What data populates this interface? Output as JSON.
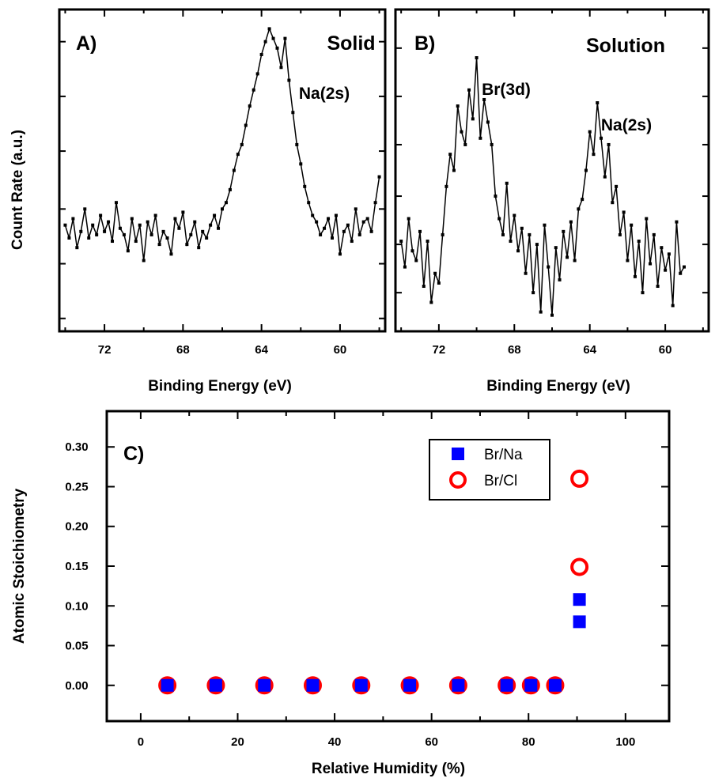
{
  "chart_data": [
    {
      "id": "A",
      "type": "line",
      "panel_label": "A)",
      "condition": "Solid",
      "xlabel": "Binding Energy (eV)",
      "ylabel": "Count Rate (a.u.)",
      "x_reversed": true,
      "xlim": [
        74.3,
        57.7
      ],
      "ylim": [
        0,
        1
      ],
      "x_ticks": [
        72,
        68,
        64,
        60
      ],
      "y_tick_labels_shown": false,
      "annotations": [
        {
          "text": "Na(2s)",
          "x": 60.2,
          "y": 0.87
        }
      ],
      "series": [
        {
          "x": [
            74.0,
            73.8,
            73.6,
            73.4,
            73.2,
            73.0,
            72.8,
            72.6,
            72.4,
            72.2,
            72.0,
            71.8,
            71.6,
            71.4,
            71.2,
            71.0,
            70.8,
            70.6,
            70.4,
            70.2,
            70.0,
            69.8,
            69.6,
            69.4,
            69.2,
            69.0,
            68.8,
            68.6,
            68.4,
            68.2,
            68.0,
            67.8,
            67.6,
            67.4,
            67.2,
            67.0,
            66.8,
            66.6,
            66.4,
            66.2,
            66.0,
            65.8,
            65.6,
            65.4,
            65.2,
            65.0,
            64.8,
            64.6,
            64.4,
            64.2,
            64.0,
            63.8,
            63.6,
            63.4,
            63.2,
            63.0,
            62.8,
            62.6,
            62.4,
            62.2,
            62.0,
            61.8,
            61.6,
            61.4,
            61.2,
            61.0,
            60.8,
            60.6,
            60.4,
            60.2,
            60.0,
            59.8,
            59.6,
            59.4,
            59.2,
            59.0,
            58.8,
            58.6,
            58.4,
            58.2,
            58.0
          ],
          "y": [
            0.33,
            0.29,
            0.35,
            0.26,
            0.31,
            0.38,
            0.29,
            0.33,
            0.3,
            0.36,
            0.31,
            0.34,
            0.28,
            0.4,
            0.32,
            0.3,
            0.25,
            0.35,
            0.28,
            0.33,
            0.22,
            0.34,
            0.3,
            0.36,
            0.27,
            0.31,
            0.29,
            0.24,
            0.35,
            0.32,
            0.37,
            0.27,
            0.3,
            0.34,
            0.26,
            0.31,
            0.29,
            0.33,
            0.36,
            0.32,
            0.38,
            0.4,
            0.44,
            0.5,
            0.55,
            0.58,
            0.64,
            0.7,
            0.75,
            0.8,
            0.86,
            0.9,
            0.94,
            0.91,
            0.88,
            0.82,
            0.91,
            0.78,
            0.68,
            0.58,
            0.52,
            0.45,
            0.4,
            0.36,
            0.34,
            0.3,
            0.32,
            0.35,
            0.29,
            0.36,
            0.24,
            0.31,
            0.33,
            0.28,
            0.38,
            0.3,
            0.34,
            0.35,
            0.31,
            0.4,
            0.48
          ]
        }
      ]
    },
    {
      "id": "B",
      "type": "line",
      "panel_label": "B)",
      "condition": "Solution",
      "xlabel": "Binding Energy (eV)",
      "ylabel": "",
      "x_reversed": true,
      "xlim": [
        74.3,
        57.7
      ],
      "ylim": [
        0,
        1
      ],
      "x_ticks": [
        72,
        68,
        64,
        60
      ],
      "y_tick_labels_shown": false,
      "annotations": [
        {
          "text": "Br(3d)",
          "x": 70.0,
          "y": 0.87
        },
        {
          "text": "Na(2s)",
          "x": 62.0,
          "y": 0.71
        }
      ],
      "series": [
        {
          "x": [
            74.0,
            73.8,
            73.6,
            73.4,
            73.2,
            73.0,
            72.8,
            72.6,
            72.4,
            72.2,
            72.0,
            71.8,
            71.6,
            71.4,
            71.2,
            71.0,
            70.8,
            70.6,
            70.4,
            70.2,
            70.0,
            69.8,
            69.6,
            69.4,
            69.2,
            69.0,
            68.8,
            68.6,
            68.4,
            68.2,
            68.0,
            67.8,
            67.6,
            67.4,
            67.2,
            67.0,
            66.8,
            66.6,
            66.4,
            66.2,
            66.0,
            65.8,
            65.6,
            65.4,
            65.2,
            65.0,
            64.8,
            64.6,
            64.4,
            64.2,
            64.0,
            63.8,
            63.6,
            63.4,
            63.2,
            63.0,
            62.8,
            62.6,
            62.4,
            62.2,
            62.0,
            61.8,
            61.6,
            61.4,
            61.2,
            61.0,
            60.8,
            60.6,
            60.4,
            60.2,
            60.0,
            59.8,
            59.6,
            59.4,
            59.2,
            59.0
          ],
          "y": [
            0.28,
            0.2,
            0.35,
            0.25,
            0.22,
            0.31,
            0.14,
            0.28,
            0.09,
            0.18,
            0.15,
            0.3,
            0.45,
            0.55,
            0.5,
            0.7,
            0.62,
            0.58,
            0.75,
            0.66,
            0.85,
            0.6,
            0.72,
            0.65,
            0.58,
            0.42,
            0.35,
            0.3,
            0.46,
            0.28,
            0.36,
            0.25,
            0.32,
            0.18,
            0.3,
            0.12,
            0.27,
            0.06,
            0.33,
            0.2,
            0.05,
            0.26,
            0.16,
            0.31,
            0.23,
            0.34,
            0.22,
            0.38,
            0.41,
            0.5,
            0.62,
            0.55,
            0.71,
            0.6,
            0.48,
            0.58,
            0.4,
            0.45,
            0.3,
            0.37,
            0.22,
            0.33,
            0.17,
            0.28,
            0.12,
            0.35,
            0.21,
            0.3,
            0.14,
            0.26,
            0.19,
            0.24,
            0.08,
            0.34,
            0.18,
            0.2
          ]
        }
      ]
    },
    {
      "id": "C",
      "type": "scatter",
      "panel_label": "C)",
      "xlabel": "Relative Humidity (%)",
      "ylabel": "Atomic Stoichiometry",
      "xlim": [
        -7,
        109
      ],
      "ylim": [
        -0.045,
        0.345
      ],
      "x_ticks": [
        0,
        20,
        40,
        60,
        80,
        100
      ],
      "y_ticks": [
        0.0,
        0.05,
        0.1,
        0.15,
        0.2,
        0.25,
        0.3
      ],
      "x_tick_labels": [
        "0",
        "20",
        "40",
        "60",
        "80",
        "100"
      ],
      "y_tick_labels": [
        "0.00",
        "0.05",
        "0.10",
        "0.15",
        "0.20",
        "0.25",
        "0.30"
      ],
      "legend_position": "top-right",
      "series": [
        {
          "name": "Br/Na",
          "marker": "square",
          "color": "#0000ff",
          "x": [
            5.5,
            15.5,
            25.5,
            35.5,
            45.5,
            55.5,
            65.5,
            75.5,
            80.5,
            85.5,
            90.5,
            90.5
          ],
          "y": [
            0,
            0,
            0,
            0,
            0,
            0,
            0,
            0,
            0,
            0,
            0.108,
            0.08
          ]
        },
        {
          "name": "Br/Cl",
          "marker": "circle-open",
          "color": "#ff0000",
          "x": [
            5.5,
            15.5,
            25.5,
            35.5,
            45.5,
            55.5,
            65.5,
            75.5,
            80.5,
            85.5,
            90.5,
            90.5
          ],
          "y": [
            0,
            0,
            0,
            0,
            0,
            0,
            0,
            0,
            0,
            0,
            0.26,
            0.149
          ]
        }
      ]
    }
  ]
}
